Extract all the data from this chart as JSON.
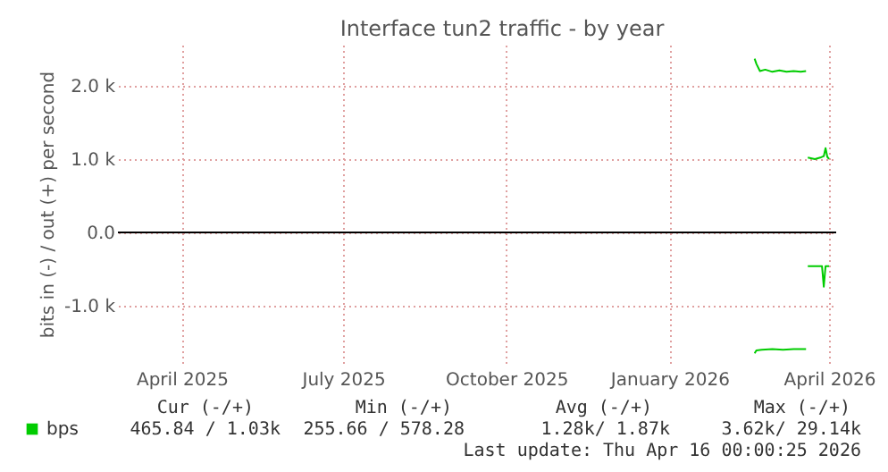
{
  "chart_data": {
    "type": "line",
    "title": "Interface tun2 traffic - by year",
    "ylabel": "bits in (-) / out (+) per second",
    "xlim": [
      "2025-02-24",
      "2026-04-05"
    ],
    "xticks": [
      {
        "value": "2025-04-01",
        "label": "April 2025"
      },
      {
        "value": "2025-07-01",
        "label": "July 2025"
      },
      {
        "value": "2025-10-01",
        "label": "October 2025"
      },
      {
        "value": "2026-01-01",
        "label": "January 2026"
      },
      {
        "value": "2026-04-01",
        "label": "April 2026"
      }
    ],
    "ylim": [
      -1780,
      2560
    ],
    "yticks": [
      {
        "value": -1000,
        "label": "-1.0 k"
      },
      {
        "value": 0,
        "label": "0.0"
      },
      {
        "value": 1000,
        "label": "1.0 k"
      },
      {
        "value": 2000,
        "label": "2.0 k"
      }
    ],
    "grid": true,
    "legend": "bottom left",
    "ref_lines": [
      {
        "axis": "y",
        "value": 0,
        "label": null,
        "color": "#000000"
      }
    ],
    "series": [
      {
        "name": "bps",
        "color": "#00cc00",
        "x": [
          "2026-02-18",
          "2026-02-19",
          "2026-02-21",
          "2026-02-24",
          "2026-02-28",
          "2026-03-04",
          "2026-03-08",
          "2026-03-12",
          "2026-03-16",
          "2026-03-19",
          "2026-03-19T12:00",
          "2026-03-20",
          "2026-03-24",
          "2026-03-27",
          "2026-03-29",
          "2026-03-30",
          "2026-03-31",
          "2026-04-01"
        ],
        "values": [
          2370,
          2300,
          2200,
          2220,
          2190,
          2210,
          2190,
          2200,
          2190,
          2200,
          null,
          1020,
          1000,
          1020,
          1040,
          1150,
          1030,
          1000
        ]
      },
      {
        "color": "#00cc00",
        "x": [
          "2026-02-18",
          "2026-02-19",
          "2026-02-22",
          "2026-02-28",
          "2026-03-06",
          "2026-03-12",
          "2026-03-19",
          "2026-03-19T12:00",
          "2026-03-20",
          "2026-03-28",
          "2026-03-29",
          "2026-03-30",
          "2026-04-01"
        ],
        "values": [
          -1650,
          -1610,
          -1600,
          -1590,
          -1600,
          -1590,
          -1590,
          null,
          -460,
          -460,
          -740,
          -460,
          -460
        ]
      }
    ],
    "annotations": [
      "Cur (-/+)",
      "Min (-/+)",
      "Avg (-/+)",
      "Max (-/+)",
      "465.84 /   1.03k",
      "255.66 / 578.28",
      "1.28k/  1.87k",
      "3.62k/ 29.14k",
      "Last update: Thu Apr 16 00:00:25 2026"
    ]
  }
}
